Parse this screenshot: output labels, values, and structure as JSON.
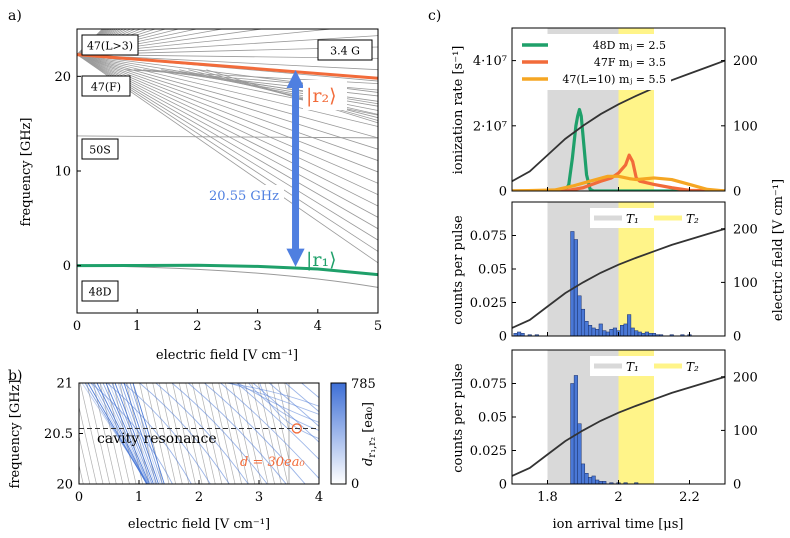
{
  "chart_data": [
    {
      "panel": "a)",
      "type": "line",
      "xlabel": "electric field [V cm⁻¹]",
      "ylabel": "frequency [GHz]",
      "xlim": [
        0,
        5
      ],
      "ylim": [
        -5,
        25
      ],
      "xticks": [
        "0",
        "1",
        "2",
        "3",
        "4",
        "5"
      ],
      "yticks": [
        "0",
        "10",
        "20"
      ],
      "state_labels": [
        "47(L>3)",
        "47(F)",
        "50S",
        "48D"
      ],
      "field_label": "3.4 G",
      "series": [
        {
          "name": "r2 state (47F)",
          "color": "#f26b3a",
          "x": [
            0,
            5
          ],
          "y": [
            22.3,
            19.8
          ]
        },
        {
          "name": "r1 state (48D)",
          "color": "#1fa06a",
          "x": [
            0,
            1,
            2,
            3,
            4,
            5
          ],
          "y": [
            0,
            0.02,
            0.05,
            -0.08,
            -0.35,
            -0.95
          ]
        }
      ],
      "transition": {
        "x": 3.63,
        "from": 0,
        "to": 20.55,
        "label": "20.55 GHz",
        "color": "#4f7fe0"
      },
      "r2_label": "|r₂⟩",
      "r1_label": "|r₁⟩"
    },
    {
      "panel": "b)",
      "type": "line",
      "xlabel": "electric field [V cm⁻¹]",
      "ylabel": "frequency [GHz]",
      "xlim": [
        0,
        4
      ],
      "ylim": [
        20,
        21
      ],
      "xticks": [
        "0",
        "1",
        "2",
        "3",
        "4"
      ],
      "yticks": [
        "20",
        "20.5",
        "21"
      ],
      "resonance_freq": 20.55,
      "resonance_label": "cavity resonance",
      "marker": {
        "x": 3.63,
        "y": 20.55
      },
      "dipole_label": "d = 30ea₀",
      "colorbar": {
        "min": "0",
        "max": "785",
        "label": "d_{r1,r2} [ea₀]",
        "label_main": "d",
        "label_sub": "r₁,r₂",
        "label_unit": " [ea₀]",
        "color_low": "#ffffff",
        "color_high": "#3e6fd6"
      }
    },
    {
      "panel": "c)",
      "type": "line",
      "subplot": "top",
      "ylabel": "ionization rate [s⁻¹]",
      "y2label": "electric field [V cm⁻¹]",
      "xlim": [
        1.7,
        2.3
      ],
      "ylim": [
        0,
        50000000
      ],
      "y2lim": [
        0,
        250
      ],
      "yticks": [
        "0",
        "2·10⁷",
        "4·10⁷"
      ],
      "y2ticks": [
        "0",
        "100",
        "200"
      ],
      "gray_band": [
        1.8,
        2.0
      ],
      "yellow_band": [
        2.0,
        2.1
      ],
      "series": [
        {
          "name": "48D  mⱼ = 2.5",
          "color": "#1fa06a",
          "x": [
            1.7,
            1.85,
            1.86,
            1.87,
            1.88,
            1.885,
            1.89,
            1.895,
            1.9,
            1.91,
            1.92,
            1.93,
            2.3
          ],
          "y": [
            0,
            0,
            2000000,
            10000000,
            20000000,
            23000000,
            25000000,
            23000000,
            17000000,
            5000000,
            500000,
            0,
            0
          ]
        },
        {
          "name": "47F  mⱼ = 3.5",
          "color": "#f26b3a",
          "x": [
            1.7,
            1.85,
            1.9,
            1.95,
            1.98,
            2.0,
            2.02,
            2.03,
            2.04,
            2.05,
            2.06,
            2.1,
            2.15,
            2.2,
            2.3
          ],
          "y": [
            0,
            0,
            1000000,
            3000000,
            4000000,
            5500000,
            8000000,
            11000000,
            9000000,
            4000000,
            3000000,
            2000000,
            1000000,
            200000,
            0
          ]
        },
        {
          "name": "47(L=10)  mⱼ = 5.5",
          "color": "#f5a623",
          "x": [
            1.7,
            1.82,
            1.87,
            1.92,
            1.97,
            2.0,
            2.03,
            2.05,
            2.08,
            2.1,
            2.15,
            2.2,
            2.25,
            2.3
          ],
          "y": [
            0,
            300000,
            1500000,
            3000000,
            4500000,
            4500000,
            3800000,
            3500000,
            3800000,
            4000000,
            3500000,
            2000000,
            500000,
            0
          ]
        }
      ],
      "field_curve": {
        "x": [
          1.7,
          1.75,
          1.8,
          1.85,
          1.9,
          1.95,
          2.0,
          2.05,
          2.1,
          2.15,
          2.2,
          2.25,
          2.3
        ],
        "y": [
          15,
          30,
          55,
          80,
          100,
          118,
          133,
          146,
          158,
          170,
          180,
          190,
          200
        ],
        "color": "#333333"
      }
    },
    {
      "panel": "c)",
      "type": "bar",
      "subplot": "middle",
      "ylabel": "counts per pulse",
      "y2label": "electric field [V cm⁻¹]",
      "xlim": [
        1.7,
        2.3
      ],
      "ylim": [
        0,
        0.1
      ],
      "y2lim": [
        0,
        250
      ],
      "yticks": [
        "0",
        "0.025",
        "0.05",
        "0.075"
      ],
      "y2ticks": [
        "0",
        "100",
        "200"
      ],
      "legend": [
        "T₁",
        "T₂"
      ],
      "bar_color": "#4a78d6",
      "bin_width": 0.01,
      "bins_x": [
        1.71,
        1.72,
        1.73,
        1.75,
        1.77,
        1.87,
        1.88,
        1.89,
        1.9,
        1.91,
        1.92,
        1.93,
        1.94,
        1.95,
        1.96,
        1.97,
        1.98,
        1.99,
        2.0,
        2.01,
        2.02,
        2.03,
        2.04,
        2.05,
        2.06,
        2.07,
        2.08,
        2.09,
        2.1,
        2.11,
        2.12,
        2.15,
        2.18,
        2.2
      ],
      "bins_y": [
        0.002,
        0.003,
        0.002,
        0.001,
        0.001,
        0.078,
        0.072,
        0.03,
        0.02,
        0.011,
        0.008,
        0.006,
        0.005,
        0.009,
        0.004,
        0.003,
        0.005,
        0.006,
        0.004,
        0.008,
        0.009,
        0.016,
        0.006,
        0.004,
        0.003,
        0.002,
        0.003,
        0.002,
        0.002,
        0.001,
        0.001,
        0.001,
        0.001,
        0.001
      ]
    },
    {
      "panel": "c)",
      "type": "bar",
      "subplot": "bottom",
      "xlabel": "ion arrival time [μs]",
      "ylabel": "counts per pulse",
      "y2label": "electric field [V cm⁻¹]",
      "xlim": [
        1.7,
        2.3
      ],
      "ylim": [
        0,
        0.1
      ],
      "y2lim": [
        0,
        250
      ],
      "xticks": [
        "1.8",
        "2",
        "2.2"
      ],
      "yticks": [
        "0",
        "0.025",
        "0.05",
        "0.075"
      ],
      "y2ticks": [
        "0",
        "100",
        "200"
      ],
      "legend": [
        "T₁",
        "T₂"
      ],
      "bar_color": "#4a78d6",
      "bin_width": 0.01,
      "bins_x": [
        1.87,
        1.88,
        1.89,
        1.9,
        1.91,
        1.92,
        1.93,
        1.94,
        1.95,
        1.96,
        1.98,
        2.0,
        2.02,
        2.05
      ],
      "bins_y": [
        0.075,
        0.081,
        0.045,
        0.015,
        0.008,
        0.005,
        0.006,
        0.003,
        0.002,
        0.002,
        0.001,
        0.001,
        0.001,
        0.001
      ]
    }
  ],
  "panel_labels": [
    "a)",
    "b)",
    "c)"
  ]
}
